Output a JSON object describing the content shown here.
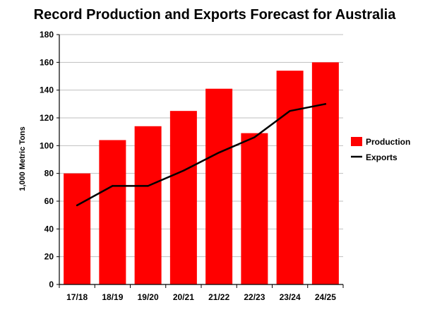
{
  "chart_data": {
    "type": "bar",
    "title": "Record Production and Exports Forecast for Australia",
    "xlabel": "",
    "ylabel": "1,000 Metric Tons",
    "ylim": [
      0,
      180
    ],
    "yticks": [
      "0",
      "20",
      "40",
      "60",
      "80",
      "100",
      "120",
      "140",
      "160",
      "180"
    ],
    "categories": [
      "17/18",
      "18/19",
      "19/20",
      "20/21",
      "21/22",
      "22/23",
      "23/24",
      "24/25"
    ],
    "series": [
      {
        "name": "Production",
        "type": "bar",
        "color": "#ff0000",
        "values": [
          80,
          104,
          114,
          125,
          141,
          109,
          154,
          160
        ]
      },
      {
        "name": "Exports",
        "type": "line",
        "color": "#000000",
        "values": [
          57,
          71,
          71,
          82,
          95,
          106,
          125,
          130
        ]
      }
    ],
    "grid": "horizontal",
    "legend": "right"
  }
}
